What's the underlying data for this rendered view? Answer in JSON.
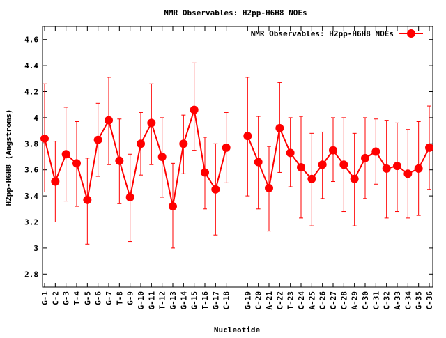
{
  "chart_data": {
    "type": "line",
    "title": "NMR Observables: H2pp-H6H8 NOEs",
    "xlabel": "Nucleotide",
    "ylabel": "H2pp-H6H8 (Angstroms)",
    "ylim": [
      2.7,
      4.7
    ],
    "yticks": [
      "2.8",
      "3",
      "3.2",
      "3.4",
      "3.6",
      "3.8",
      "4",
      "4.2",
      "4.4",
      "4.6"
    ],
    "grid": false,
    "legend_position": "top-right",
    "color": "#ff0000",
    "series": [
      {
        "name": "NMR Observables: H2pp-H6H8 NOEs",
        "segments": [
          {
            "categories": [
              "G-1",
              "C-2",
              "G-3",
              "T-4",
              "G-5",
              "G-6",
              "G-7",
              "T-8",
              "G-9",
              "G-10",
              "G-11",
              "T-12",
              "G-13",
              "G-14",
              "G-15",
              "T-16",
              "G-17",
              "C-18"
            ],
            "values": [
              3.84,
              3.51,
              3.72,
              3.65,
              3.37,
              3.83,
              3.98,
              3.67,
              3.39,
              3.8,
              3.96,
              3.7,
              3.32,
              3.8,
              4.06,
              3.58,
              3.45,
              3.77
            ],
            "error_low": [
              3.43,
              3.2,
              3.36,
              3.32,
              3.03,
              3.55,
              3.64,
              3.34,
              3.05,
              3.56,
              3.64,
              3.39,
              3.0,
              3.57,
              3.75,
              3.3,
              3.1,
              3.5
            ],
            "error_high": [
              4.26,
              3.82,
              4.08,
              3.97,
              3.69,
              4.11,
              4.31,
              3.99,
              3.72,
              4.04,
              4.26,
              4.0,
              3.65,
              4.02,
              4.42,
              3.85,
              3.8,
              4.04
            ]
          },
          {
            "categories": [
              "G-19",
              "C-20",
              "A-21",
              "C-22",
              "T-23",
              "C-24",
              "A-25",
              "C-26",
              "C-27",
              "C-28",
              "A-29",
              "C-30",
              "C-31",
              "C-32",
              "A-33",
              "C-34",
              "G-35",
              "C-36"
            ],
            "values": [
              3.86,
              3.66,
              3.46,
              3.92,
              3.73,
              3.62,
              3.53,
              3.64,
              3.75,
              3.64,
              3.53,
              3.69,
              3.74,
              3.61,
              3.63,
              3.57,
              3.61,
              3.77
            ],
            "error_low": [
              3.4,
              3.3,
              3.13,
              3.58,
              3.47,
              3.23,
              3.17,
              3.38,
              3.51,
              3.28,
              3.17,
              3.38,
              3.49,
              3.23,
              3.28,
              3.23,
              3.25,
              3.45
            ],
            "error_high": [
              4.31,
              4.01,
              3.78,
              4.27,
              4.0,
              4.01,
              3.88,
              3.89,
              4.0,
              4.0,
              3.88,
              4.0,
              3.99,
              3.98,
              3.96,
              3.91,
              3.97,
              4.09
            ]
          }
        ]
      }
    ]
  }
}
